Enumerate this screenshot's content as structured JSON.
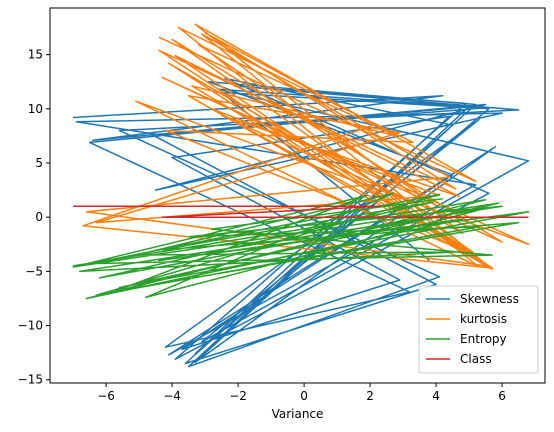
{
  "chart_data": {
    "type": "line",
    "title": "",
    "xlabel": "Variance",
    "ylabel": "",
    "xlim": [
      -7.7,
      7.3
    ],
    "ylim": [
      -15.3,
      19.3
    ],
    "xticks": [
      -6,
      -4,
      -2,
      0,
      2,
      4,
      6
    ],
    "yticks": [
      -15,
      -10,
      -5,
      0,
      5,
      10,
      15
    ],
    "grid": false,
    "legend_position": "lower-right",
    "colors": {
      "Skewness": "#1f77b4",
      "kurtosis": "#ff7f0e",
      "Entropy": "#2ca02c",
      "Class": "#d62728"
    },
    "series": [
      {
        "name": "Skewness",
        "x": [
          -7.0,
          4.2,
          -6.4,
          5.5,
          -4.5,
          6.0,
          -6.9,
          5.2,
          -4.1,
          5.8,
          -3.3,
          4.5,
          -2.4,
          5.6,
          -3.9,
          4.9,
          -2.1,
          6.5,
          -5.6,
          4.1,
          -3.5,
          5.0,
          -6.5,
          3.2,
          -4.2,
          5.3,
          -3.1,
          6.8,
          -2.6,
          5.5,
          -4.6,
          4.0,
          -3.6,
          5.2,
          -2.9,
          4.5,
          -3.7,
          2.9,
          -4.0,
          4.4,
          -3.3,
          5.6,
          -2.5,
          3.8
        ],
        "y": [
          9.2,
          11.2,
          7.1,
          10.4,
          2.5,
          9.6,
          8.8,
          3.0,
          -12.7,
          6.5,
          -13.4,
          8.5,
          12.8,
          2.2,
          -13.1,
          10.5,
          12.1,
          9.9,
          8.0,
          -5.5,
          -13.8,
          10.2,
          6.9,
          -6.9,
          -12.0,
          9.0,
          -11.5,
          5.2,
          11.8,
          10.1,
          7.6,
          -6.2,
          -13.5,
          10.4,
          12.5,
          3.9,
          -12.2,
          -5.8,
          5.5,
          9.3,
          -12.6,
          10.0,
          11.5,
          -4.0
        ]
      },
      {
        "name": "kurtosis",
        "x": [
          -4.4,
          5.2,
          -3.3,
          4.8,
          -4.1,
          5.5,
          -6.6,
          4.4,
          -3.1,
          5.7,
          -3.5,
          2.9,
          -6.3,
          4.1,
          -2.8,
          5.2,
          -4.2,
          3.3,
          -3.8,
          5.3,
          -5.1,
          6.8,
          -4.3,
          4.0,
          -3.2,
          2.1,
          -6.7,
          5.7,
          -3.9,
          4.7,
          -2.5,
          6.0,
          -4.0,
          5.1,
          -3.4,
          2.8,
          -3.0,
          4.6,
          -4.4,
          5.4
        ],
        "y": [
          16.6,
          3.3,
          17.8,
          -1.5,
          14.2,
          -4.5,
          0.5,
          3.7,
          16.9,
          -4.8,
          11.2,
          7.8,
          -0.5,
          2.0,
          10.0,
          -3.5,
          8.0,
          6.9,
          17.5,
          -4.6,
          10.7,
          -2.5,
          12.9,
          1.1,
          15.9,
          8.5,
          -0.8,
          -4.7,
          14.9,
          1.9,
          9.4,
          -2.3,
          16.4,
          -3.2,
          12.1,
          7.5,
          17.0,
          2.6,
          15.4,
          -4.2
        ]
      },
      {
        "name": "Entropy",
        "x": [
          -7.0,
          5.5,
          -6.6,
          4.8,
          -4.4,
          6.8,
          -5.6,
          5.9,
          -7.0,
          4.1,
          -6.3,
          5.3,
          -3.5,
          6.0,
          -6.8,
          4.6,
          -5.1,
          2.7,
          -4.8,
          5.6,
          -6.2,
          3.9,
          -4.3,
          6.5,
          -5.7,
          1.9,
          -6.6,
          5.7,
          -2.8,
          4.2
        ],
        "y": [
          -4.5,
          1.6,
          -7.5,
          -0.2,
          -4.0,
          0.5,
          -6.5,
          1.3,
          -4.6,
          2.1,
          -7.2,
          -0.9,
          -1.8,
          1.0,
          -5.0,
          -3.2,
          -3.5,
          2.2,
          -7.4,
          0.9,
          -5.6,
          1.4,
          -3.0,
          -0.5,
          -6.8,
          2.0,
          -4.3,
          -3.5,
          -1.1,
          1.7
        ]
      },
      {
        "name": "Class",
        "x": [
          -7.0,
          2.3,
          -4.3,
          6.8
        ],
        "y": [
          1.0,
          1.0,
          0.0,
          0.0
        ]
      }
    ]
  }
}
